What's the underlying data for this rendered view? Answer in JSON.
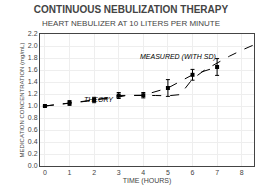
{
  "chart_data": {
    "type": "line",
    "title": "CONTINUOUS NEBULIZATION THERAPY",
    "subtitle": "HEART NEBULIZER AT 10 LITERS PER MINUTE",
    "xlabel": "TIME (HOURS)",
    "ylabel": "MEDICATION CONCENTRATION (mg/mL)",
    "xlim": [
      -0.2,
      8.5
    ],
    "ylim": [
      0,
      2.2
    ],
    "xticks": [
      0,
      1,
      2,
      3,
      4,
      5,
      6,
      7,
      8
    ],
    "yticks": [
      {
        "value": 0,
        "label": "0.0"
      },
      0.2,
      0.4,
      0.6,
      0.8,
      {
        "value": 1.0,
        "label": "1.0"
      },
      1.2,
      1.4,
      1.6,
      1.8,
      {
        "value": 2.0,
        "label": "2.0"
      },
      2.2
    ],
    "grid": true,
    "series": [
      {
        "x": [
          0,
          0.5,
          1,
          1.5,
          2,
          2.5,
          3,
          3.3,
          3.7,
          4,
          4.5,
          5,
          5.5,
          6,
          6.5,
          7,
          7.5,
          8,
          8.5
        ],
        "values": [
          1.0,
          1.02,
          1.05,
          1.07,
          1.1,
          1.12,
          1.15,
          1.175,
          1.18,
          1.175,
          1.175,
          1.17,
          1.19,
          1.45,
          1.6,
          1.72,
          1.83,
          1.93,
          2.02
        ],
        "color": "black",
        "line_style": "dashed"
      },
      {
        "x": [
          0,
          1,
          2,
          3,
          4,
          5,
          6,
          7
        ],
        "values": [
          1.0,
          1.05,
          1.1,
          1.175,
          1.18,
          1.3,
          1.52,
          1.65
        ],
        "errors": [
          0.0,
          0.04,
          0.045,
          0.05,
          0.045,
          0.14,
          0.09,
          0.14
        ],
        "color": "black",
        "marker": "square",
        "line_style": "dashed"
      }
    ],
    "annotations": [
      {
        "text": "MEASURED (WITH SD)",
        "x": 3.8,
        "y": 1.72
      },
      {
        "text": "THEORY",
        "x": 1.5,
        "y": 1.02
      }
    ]
  }
}
